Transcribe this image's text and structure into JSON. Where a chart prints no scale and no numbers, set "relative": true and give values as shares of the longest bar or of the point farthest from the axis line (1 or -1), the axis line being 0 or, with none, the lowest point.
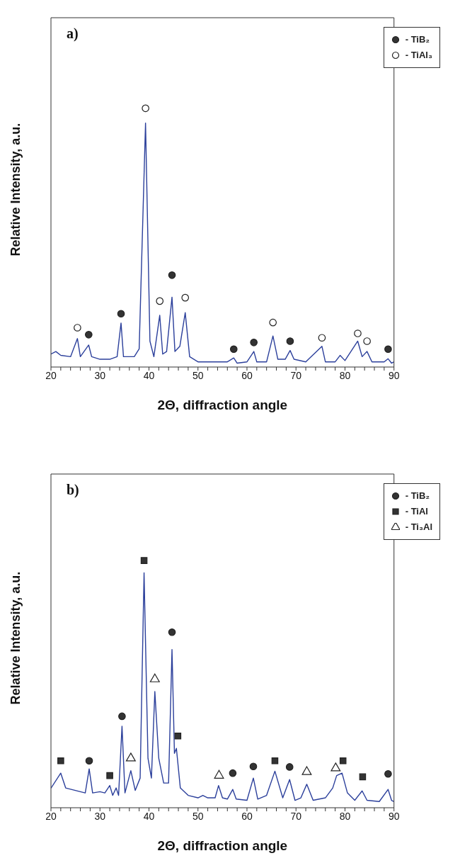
{
  "chart_data": [
    {
      "type": "line",
      "title": "a)",
      "xlabel": "2Θ, diffraction angle",
      "ylabel": "Relative Intensity, a.u.",
      "relative": true,
      "tick_labels": "x",
      "legend": "top right",
      "grid": false,
      "xlim": [
        20,
        90
      ],
      "xticks": [
        20,
        {
          "value": 22,
          "label": null
        },
        {
          "value": 24,
          "label": null
        },
        {
          "value": 26,
          "label": null
        },
        {
          "value": 28,
          "label": null
        },
        30,
        {
          "value": 32,
          "label": null
        },
        {
          "value": 34,
          "label": null
        },
        {
          "value": 36,
          "label": null
        },
        {
          "value": 38,
          "label": null
        },
        40,
        {
          "value": 42,
          "label": null
        },
        {
          "value": 44,
          "label": null
        },
        {
          "value": 46,
          "label": null
        },
        {
          "value": 48,
          "label": null
        },
        50,
        {
          "value": 52,
          "label": null
        },
        {
          "value": 54,
          "label": null
        },
        {
          "value": 56,
          "label": null
        },
        {
          "value": 58,
          "label": null
        },
        60,
        {
          "value": 62,
          "label": null
        },
        {
          "value": 64,
          "label": null
        },
        {
          "value": 66,
          "label": null
        },
        {
          "value": 68,
          "label": null
        },
        70,
        {
          "value": 72,
          "label": null
        },
        {
          "value": 74,
          "label": null
        },
        {
          "value": 76,
          "label": null
        },
        {
          "value": 78,
          "label": null
        },
        80,
        {
          "value": 82,
          "label": null
        },
        {
          "value": 84,
          "label": null
        },
        {
          "value": 86,
          "label": null
        },
        {
          "value": 88,
          "label": null
        },
        90
      ],
      "series": [
        {
          "type": "line",
          "color": "#2b3f9b",
          "line_style": "solid",
          "marker": "none",
          "x": [
            20,
            21,
            22,
            24,
            25.4,
            26,
            27.7,
            28.3,
            30,
            32,
            33.5,
            34.3,
            34.8,
            37,
            38,
            39.3,
            40.2,
            41,
            42.2,
            42.8,
            43.6,
            44.7,
            45.3,
            46.3,
            47.4,
            48.3,
            50,
            54,
            56,
            57.3,
            58,
            60,
            61.4,
            62,
            64,
            65.3,
            66.3,
            67.8,
            68.8,
            69.6,
            72,
            75.3,
            76,
            78,
            79,
            80,
            82.6,
            83.5,
            84.5,
            85.5,
            88,
            88.8,
            89.5,
            90
          ],
          "values": [
            0.05,
            0.06,
            0.045,
            0.04,
            0.11,
            0.04,
            0.085,
            0.04,
            0.03,
            0.03,
            0.04,
            0.17,
            0.04,
            0.04,
            0.07,
            0.943,
            0.1,
            0.04,
            0.2,
            0.05,
            0.06,
            0.27,
            0.06,
            0.08,
            0.21,
            0.04,
            0.02,
            0.02,
            0.02,
            0.035,
            0.015,
            0.02,
            0.06,
            0.02,
            0.02,
            0.12,
            0.03,
            0.03,
            0.064,
            0.03,
            0.02,
            0.08,
            0.02,
            0.02,
            0.045,
            0.025,
            0.1,
            0.04,
            0.06,
            0.02,
            0.02,
            0.032,
            0.015,
            0.02
          ]
        },
        {
          "type": "scatter",
          "name": "- TiB₂",
          "color": "#333333",
          "marker": "circle",
          "x": [
            27.7,
            34.3,
            44.7,
            57.3,
            61.4,
            68.8,
            88.8
          ],
          "values": [
            0.125,
            0.206,
            0.355,
            0.069,
            0.095,
            0.1,
            0.069
          ]
        },
        {
          "type": "scatter",
          "name": "- TiAl₃",
          "color": "#ffffff",
          "marker": "circle",
          "x": [
            25.4,
            39.3,
            42.2,
            47.4,
            65.3,
            75.3,
            82.6,
            84.5
          ],
          "values": [
            0.152,
            1,
            0.255,
            0.268,
            0.172,
            0.113,
            0.13,
            0.1
          ]
        }
      ]
    },
    {
      "type": "line",
      "title": "b)",
      "xlabel": "2Θ, diffraction angle",
      "ylabel": "Relative Intensity, a.u.",
      "relative": true,
      "tick_labels": "x",
      "legend": "top right",
      "grid": false,
      "xlim": [
        20,
        90
      ],
      "xticks": [
        20,
        {
          "value": 22,
          "label": null
        },
        {
          "value": 24,
          "label": null
        },
        {
          "value": 26,
          "label": null
        },
        {
          "value": 28,
          "label": null
        },
        30,
        {
          "value": 32,
          "label": null
        },
        {
          "value": 34,
          "label": null
        },
        {
          "value": 36,
          "label": null
        },
        {
          "value": 38,
          "label": null
        },
        40,
        {
          "value": 42,
          "label": null
        },
        {
          "value": 44,
          "label": null
        },
        {
          "value": 46,
          "label": null
        },
        {
          "value": 48,
          "label": null
        },
        50,
        {
          "value": 52,
          "label": null
        },
        {
          "value": 54,
          "label": null
        },
        {
          "value": 56,
          "label": null
        },
        {
          "value": 58,
          "label": null
        },
        60,
        {
          "value": 62,
          "label": null
        },
        {
          "value": 64,
          "label": null
        },
        {
          "value": 66,
          "label": null
        },
        {
          "value": 68,
          "label": null
        },
        70,
        {
          "value": 72,
          "label": null
        },
        {
          "value": 74,
          "label": null
        },
        {
          "value": 76,
          "label": null
        },
        {
          "value": 78,
          "label": null
        },
        80,
        {
          "value": 82,
          "label": null
        },
        {
          "value": 84,
          "label": null
        },
        {
          "value": 86,
          "label": null
        },
        {
          "value": 88,
          "label": null
        },
        90
      ],
      "series": [
        {
          "type": "line",
          "color": "#2b3f9b",
          "line_style": "solid",
          "marker": "none",
          "x": [
            20,
            22,
            23,
            27,
            27.8,
            28.5,
            30,
            31,
            32,
            32.6,
            33.3,
            33.8,
            34.5,
            35.1,
            36.3,
            37.2,
            38.2,
            39,
            39.8,
            40.5,
            41.2,
            42,
            43,
            44,
            44.7,
            45.2,
            45.6,
            46.4,
            48,
            50,
            51,
            52,
            53.5,
            54.2,
            55,
            56,
            57.1,
            57.8,
            60,
            61.3,
            62.2,
            64,
            65.7,
            67.3,
            68.7,
            69.8,
            71,
            72.2,
            73.5,
            76,
            77.5,
            78.3,
            79.4,
            80.5,
            82,
            83.5,
            84.5,
            87,
            88.8,
            89.5,
            90
          ],
          "values": [
            0.079,
            0.14,
            0.08,
            0.06,
            0.157,
            0.06,
            0.065,
            0.06,
            0.09,
            0.05,
            0.08,
            0.05,
            0.33,
            0.06,
            0.15,
            0.07,
            0.12,
            0.95,
            0.2,
            0.12,
            0.47,
            0.2,
            0.1,
            0.1,
            0.64,
            0.22,
            0.24,
            0.08,
            0.05,
            0.04,
            0.05,
            0.04,
            0.04,
            0.09,
            0.04,
            0.035,
            0.074,
            0.035,
            0.03,
            0.12,
            0.035,
            0.05,
            0.148,
            0.04,
            0.114,
            0.03,
            0.04,
            0.095,
            0.03,
            0.04,
            0.08,
            0.13,
            0.14,
            0.06,
            0.03,
            0.068,
            0.03,
            0.025,
            0.074,
            0.03,
            0.025
          ]
        },
        {
          "type": "scatter",
          "name": "- TiB₂",
          "color": "#333333",
          "marker": "circle",
          "x": [
            27.8,
            34.5,
            44.7,
            57.1,
            61.3,
            68.7,
            88.8
          ],
          "values": [
            0.19,
            0.37,
            0.71,
            0.14,
            0.167,
            0.165,
            0.137
          ]
        },
        {
          "type": "scatter",
          "name": "- TiAl",
          "color": "#333333",
          "marker": "square",
          "x": [
            22,
            32,
            39,
            45.9,
            65.7,
            79.6,
            83.6
          ],
          "values": [
            0.19,
            0.13,
            1,
            0.29,
            0.19,
            0.19,
            0.125
          ]
        },
        {
          "type": "scatter",
          "name": "- Ti₃Al",
          "color": "#ffffff",
          "marker": "triangle",
          "x": [
            36.3,
            41.2,
            54.3,
            72.2,
            78.1
          ],
          "values": [
            0.2,
            0.52,
            0.13,
            0.145,
            0.16
          ]
        }
      ]
    }
  ]
}
